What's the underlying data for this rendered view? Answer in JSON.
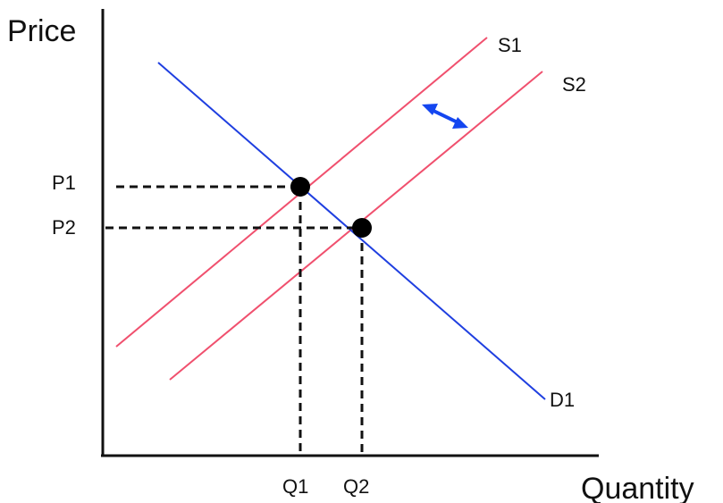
{
  "diagram": {
    "axes": {
      "y_title": "Price",
      "x_title": "Quantity",
      "color": "#111111"
    },
    "price_labels": {
      "p1": "P1",
      "p2": "P2"
    },
    "quantity_labels": {
      "q1": "Q1",
      "q2": "Q2"
    },
    "curves": {
      "supply_1": {
        "label": "S1",
        "color": "#f0506e"
      },
      "supply_2": {
        "label": "S2",
        "color": "#f0506e"
      },
      "demand_1": {
        "label": "D1",
        "color": "#1f3fe0"
      }
    },
    "equilibria": [
      {
        "price": "P1",
        "quantity": "Q1",
        "curves": [
          "D1",
          "S1"
        ]
      },
      {
        "price": "P2",
        "quantity": "Q2",
        "curves": [
          "D1",
          "S2"
        ]
      }
    ],
    "shift_arrow": {
      "icon": "double-headed-arrow",
      "color": "#1446f0",
      "direction": "between S1 and S2"
    },
    "guide_line_style": "dashed"
  }
}
